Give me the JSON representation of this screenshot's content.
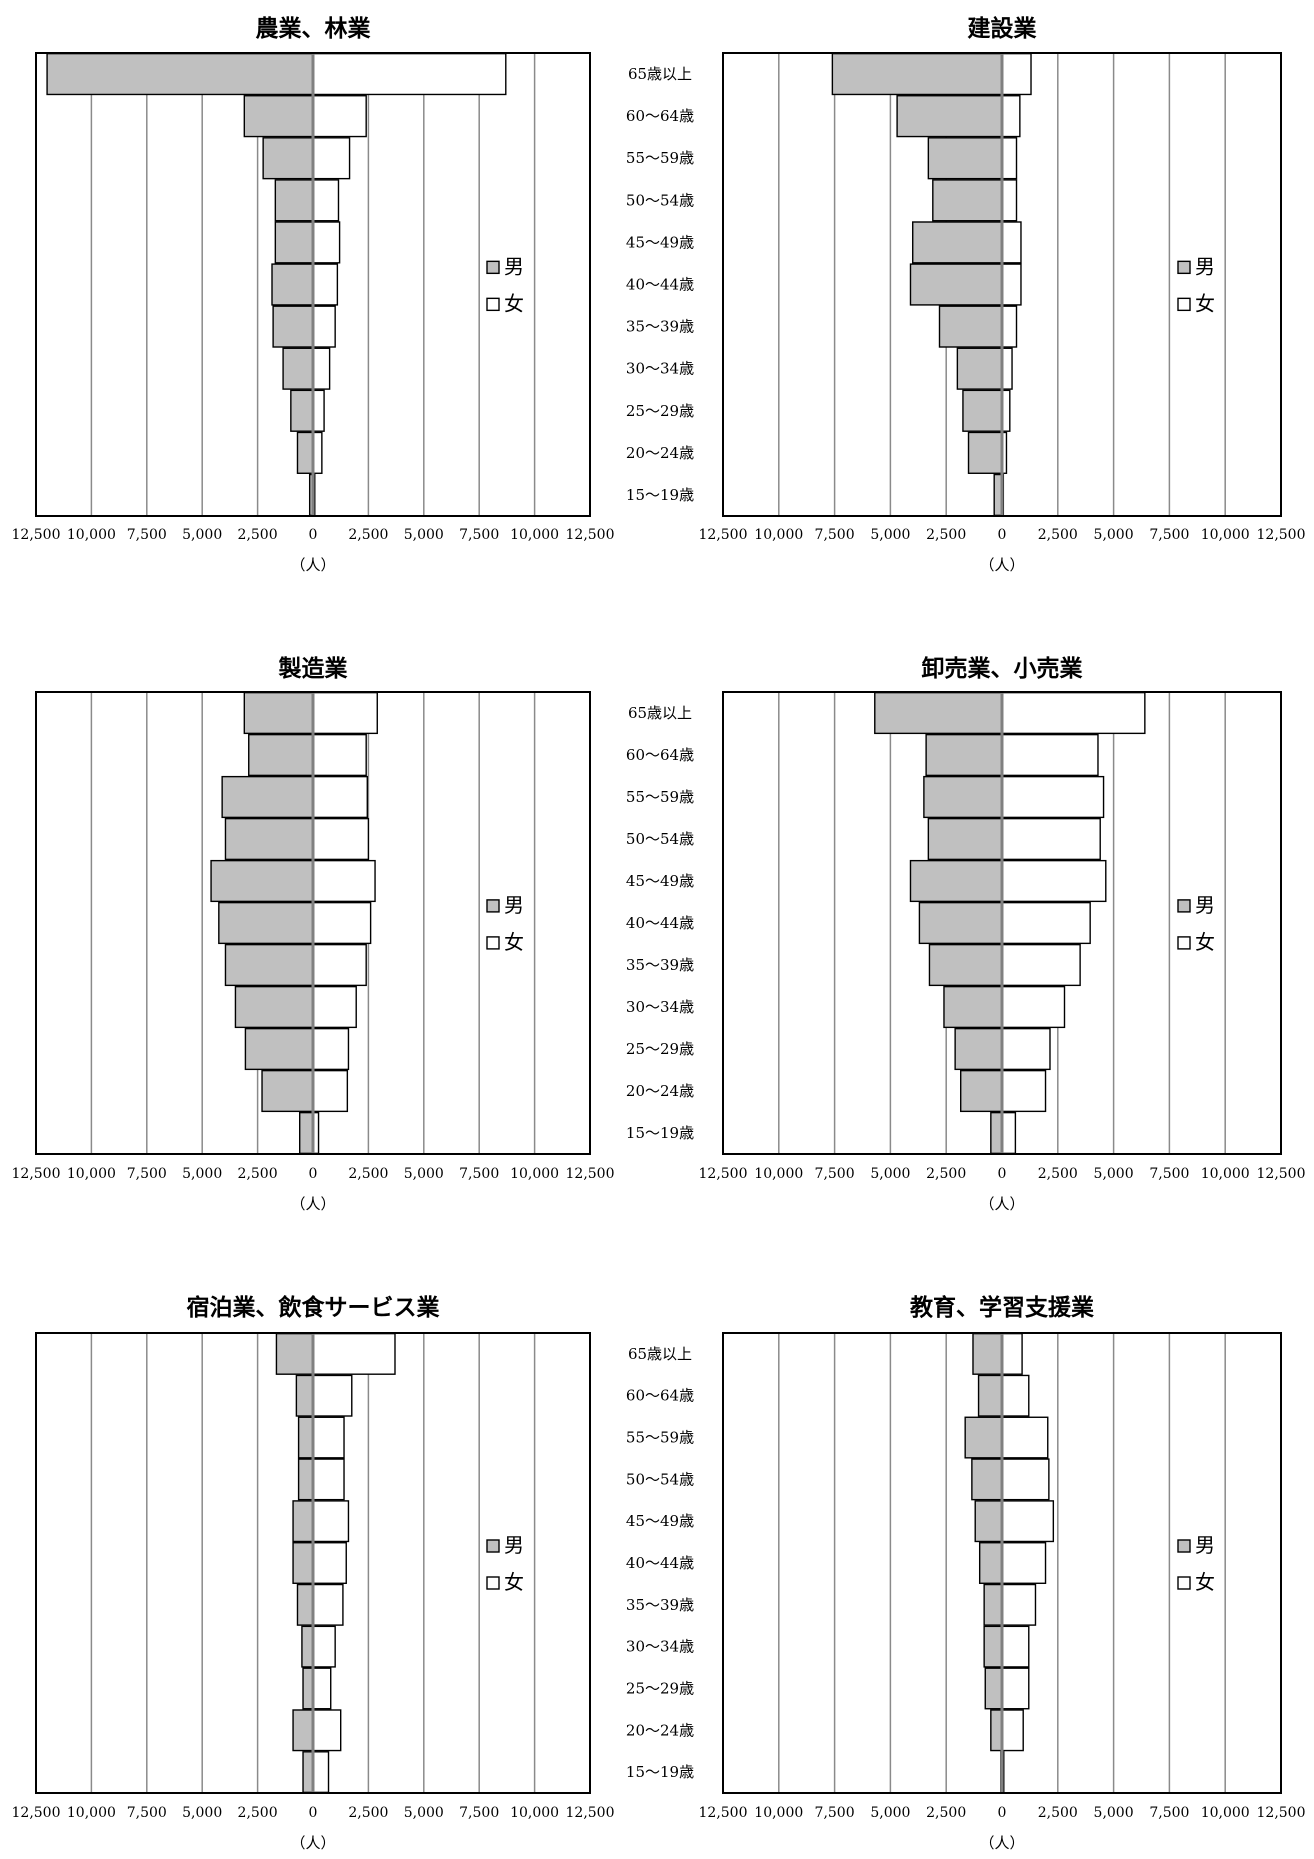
{
  "chart_data": [
    {
      "type": "bar",
      "title": "農業、林業",
      "xlabel": "（人）",
      "categories": [
        "65歳以上",
        "60～64歳",
        "55～59歳",
        "50～54歳",
        "45～49歳",
        "40～44歳",
        "35～39歳",
        "30～34歳",
        "25～29歳",
        "20～24歳",
        "15～19歳"
      ],
      "series": [
        {
          "name": "男",
          "color": "#c0c0c0",
          "values": [
            12000,
            3100,
            2250,
            1700,
            1700,
            1850,
            1800,
            1350,
            1000,
            700,
            150
          ]
        },
        {
          "name": "女",
          "color": "#ffffff",
          "values": [
            8700,
            2400,
            1650,
            1150,
            1200,
            1100,
            1000,
            750,
            500,
            400,
            80
          ]
        }
      ],
      "xlim": [
        -12500,
        12500
      ],
      "xticks": [
        "12,500",
        "10,000",
        "7,500",
        "5,000",
        "2,500",
        "0",
        "2,500",
        "5,000",
        "7,500",
        "10,000",
        "12,500"
      ],
      "legend": "right",
      "grid": true
    },
    {
      "type": "bar",
      "title": "建設業",
      "xlabel": "（人）",
      "categories": [
        "65歳以上",
        "60～64歳",
        "55～59歳",
        "50～54歳",
        "45～49歳",
        "40～44歳",
        "35～39歳",
        "30～34歳",
        "25～29歳",
        "20～24歳",
        "15～19歳"
      ],
      "series": [
        {
          "name": "男",
          "color": "#c0c0c0",
          "values": [
            7600,
            4700,
            3300,
            3100,
            4000,
            4100,
            2800,
            2000,
            1750,
            1500,
            350
          ]
        },
        {
          "name": "女",
          "color": "#ffffff",
          "values": [
            1300,
            800,
            650,
            650,
            850,
            850,
            650,
            450,
            350,
            200,
            60
          ]
        }
      ],
      "xlim": [
        -12500,
        12500
      ],
      "xticks": [
        "12,500",
        "10,000",
        "7,500",
        "5,000",
        "2,500",
        "0",
        "2,500",
        "5,000",
        "7,500",
        "10,000",
        "12,500"
      ],
      "legend": "right",
      "grid": true
    },
    {
      "type": "bar",
      "title": "製造業",
      "xlabel": "（人）",
      "categories": [
        "65歳以上",
        "60～64歳",
        "55～59歳",
        "50～54歳",
        "45～49歳",
        "40～44歳",
        "35～39歳",
        "30～34歳",
        "25～29歳",
        "20～24歳",
        "15～19歳"
      ],
      "series": [
        {
          "name": "男",
          "color": "#c0c0c0",
          "values": [
            3100,
            2900,
            4100,
            3950,
            4600,
            4250,
            3950,
            3500,
            3050,
            2300,
            600
          ]
        },
        {
          "name": "女",
          "color": "#ffffff",
          "values": [
            2900,
            2400,
            2450,
            2500,
            2800,
            2600,
            2400,
            1950,
            1600,
            1550,
            250
          ]
        }
      ],
      "xlim": [
        -12500,
        12500
      ],
      "xticks": [
        "12,500",
        "10,000",
        "7,500",
        "5,000",
        "2,500",
        "0",
        "2,500",
        "5,000",
        "7,500",
        "10,000",
        "12,500"
      ],
      "legend": "right",
      "grid": true
    },
    {
      "type": "bar",
      "title": "卸売業、小売業",
      "xlabel": "（人）",
      "categories": [
        "65歳以上",
        "60～64歳",
        "55～59歳",
        "50～54歳",
        "45～49歳",
        "40～44歳",
        "35～39歳",
        "30～34歳",
        "25～29歳",
        "20～24歳",
        "15～19歳"
      ],
      "series": [
        {
          "name": "男",
          "color": "#c0c0c0",
          "values": [
            5700,
            3400,
            3500,
            3300,
            4100,
            3700,
            3250,
            2600,
            2100,
            1850,
            500
          ]
        },
        {
          "name": "女",
          "color": "#ffffff",
          "values": [
            6400,
            4300,
            4550,
            4400,
            4650,
            3950,
            3500,
            2800,
            2150,
            1950,
            600
          ]
        }
      ],
      "xlim": [
        -12500,
        12500
      ],
      "xticks": [
        "12,500",
        "10,000",
        "7,500",
        "5,000",
        "2,500",
        "0",
        "2,500",
        "5,000",
        "7,500",
        "10,000",
        "12,500"
      ],
      "legend": "right",
      "grid": true
    },
    {
      "type": "bar",
      "title": "宿泊業、飲食サービス業",
      "xlabel": "（人）",
      "categories": [
        "65歳以上",
        "60～64歳",
        "55～59歳",
        "50～54歳",
        "45～49歳",
        "40～44歳",
        "35～39歳",
        "30～34歳",
        "25～29歳",
        "20～24歳",
        "15～19歳"
      ],
      "series": [
        {
          "name": "男",
          "color": "#c0c0c0",
          "values": [
            1650,
            750,
            650,
            650,
            900,
            900,
            700,
            500,
            450,
            900,
            450
          ]
        },
        {
          "name": "女",
          "color": "#ffffff",
          "values": [
            3700,
            1750,
            1400,
            1400,
            1600,
            1500,
            1350,
            1000,
            800,
            1250,
            700
          ]
        }
      ],
      "xlim": [
        -12500,
        12500
      ],
      "xticks": [
        "12,500",
        "10,000",
        "7,500",
        "5,000",
        "2,500",
        "0",
        "2,500",
        "5,000",
        "7,500",
        "10,000",
        "12,500"
      ],
      "legend": "right",
      "grid": true
    },
    {
      "type": "bar",
      "title": "教育、学習支援業",
      "xlabel": "（人）",
      "categories": [
        "65歳以上",
        "60～64歳",
        "55～59歳",
        "50～54歳",
        "45～49歳",
        "40～44歳",
        "35～39歳",
        "30～34歳",
        "25～29歳",
        "20～24歳",
        "15～19歳"
      ],
      "series": [
        {
          "name": "男",
          "color": "#c0c0c0",
          "values": [
            1300,
            1050,
            1650,
            1350,
            1200,
            1000,
            800,
            800,
            750,
            500,
            50
          ]
        },
        {
          "name": "女",
          "color": "#ffffff",
          "values": [
            900,
            1200,
            2050,
            2100,
            2300,
            1950,
            1500,
            1200,
            1200,
            950,
            80
          ]
        }
      ],
      "xlim": [
        -12500,
        12500
      ],
      "xticks": [
        "12,500",
        "10,000",
        "7,500",
        "5,000",
        "2,500",
        "0",
        "2,500",
        "5,000",
        "7,500",
        "10,000",
        "12,500"
      ],
      "legend": "right",
      "grid": true
    }
  ]
}
